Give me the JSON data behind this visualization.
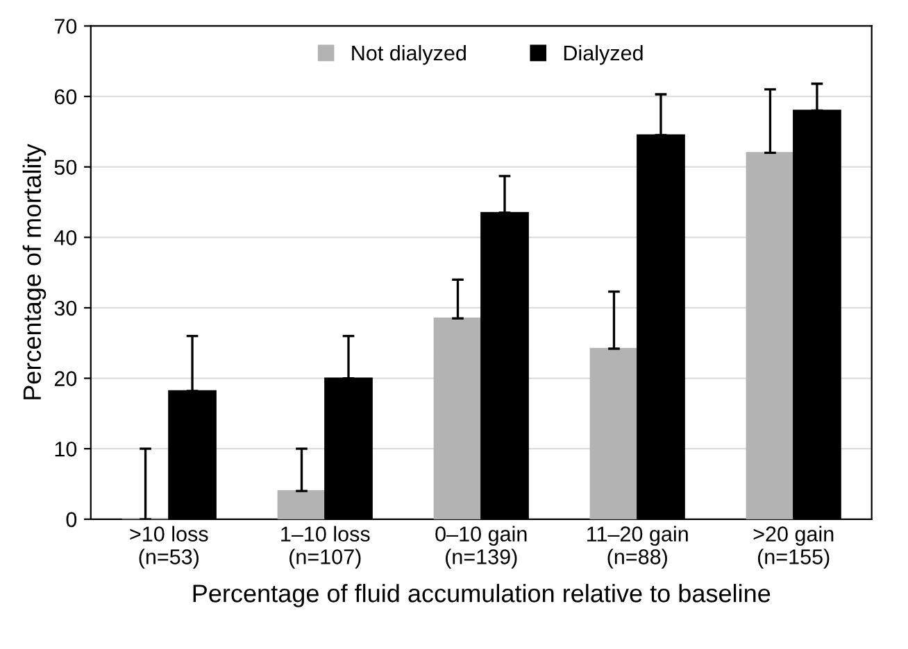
{
  "chart_data": {
    "type": "bar",
    "xlabel": "Percentage of fluid accumulation relative to baseline",
    "ylabel": "Percentage of mortality",
    "categories": [
      ">10 loss\n(n=53)",
      "1–10 loss\n(n=107)",
      "0–10 gain\n(n=139)",
      "11–20 gain\n(n=88)",
      ">20 gain\n(n=155)"
    ],
    "series": [
      {
        "name": "Not dialyzed",
        "color": "#b3b3b3",
        "values": [
          0,
          4,
          28.5,
          24.2,
          52
        ],
        "errors": [
          [
            0,
            10
          ],
          [
            4,
            10
          ],
          [
            28.5,
            34
          ],
          [
            24.2,
            32.3
          ],
          [
            52,
            61
          ]
        ]
      },
      {
        "name": "Dialyzed",
        "color": "#000000",
        "values": [
          18.2,
          20,
          43.5,
          54.5,
          58
        ],
        "errors": [
          [
            18.2,
            26
          ],
          [
            20,
            26
          ],
          [
            43.5,
            48.7
          ],
          [
            54.5,
            60.3
          ],
          [
            58,
            61.8
          ]
        ]
      }
    ],
    "ylim": [
      0,
      70
    ],
    "yticks": [
      0,
      10,
      20,
      30,
      40,
      50,
      60,
      70
    ],
    "grid": "y",
    "legend": "top"
  }
}
